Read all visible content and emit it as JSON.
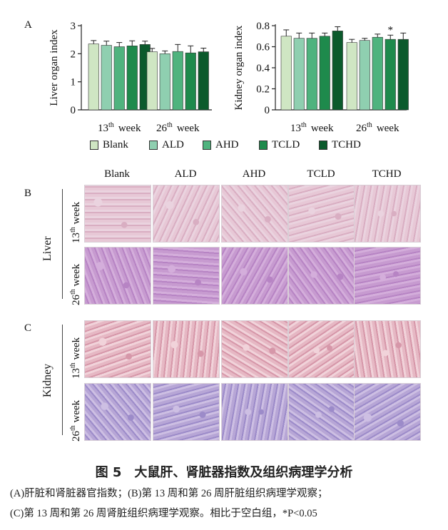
{
  "panel_labels": {
    "a": "A",
    "b": "B",
    "c": "C"
  },
  "legend": {
    "items": [
      {
        "label": "Blank",
        "color": "#cfe6c3"
      },
      {
        "label": "ALD",
        "color": "#8fcfb0"
      },
      {
        "label": "AHD",
        "color": "#4fb37e"
      },
      {
        "label": "TCLD",
        "color": "#1e8a4c"
      },
      {
        "label": "TCHD",
        "color": "#0b5a2c"
      }
    ]
  },
  "chart_data": [
    {
      "type": "bar",
      "ylabel": "Liver organ index",
      "ylim": [
        0,
        3
      ],
      "yticks": [
        "0",
        "1",
        "2",
        "3"
      ],
      "categories": [
        {
          "num": "13",
          "sup": "th",
          "word": "week"
        },
        {
          "num": "26",
          "sup": "th",
          "word": "week"
        }
      ],
      "series": [
        {
          "name": "Blank",
          "values": [
            2.35,
            2.07
          ],
          "errors": [
            0.12,
            0.12
          ]
        },
        {
          "name": "ALD",
          "values": [
            2.3,
            2.0
          ],
          "errors": [
            0.15,
            0.1
          ]
        },
        {
          "name": "AHD",
          "values": [
            2.25,
            2.08
          ],
          "errors": [
            0.15,
            0.25
          ]
        },
        {
          "name": "TCLD",
          "values": [
            2.28,
            2.03
          ],
          "errors": [
            0.18,
            0.25
          ]
        },
        {
          "name": "TCHD",
          "values": [
            2.33,
            2.07
          ],
          "errors": [
            0.12,
            0.13
          ]
        }
      ]
    },
    {
      "type": "bar",
      "ylabel": "Kidney organ index",
      "ylim": [
        0,
        0.8
      ],
      "yticks": [
        "0",
        "0.2",
        "0.4",
        "0.6",
        "0.8"
      ],
      "categories": [
        {
          "num": "13",
          "sup": "th",
          "word": "week"
        },
        {
          "num": "26",
          "sup": "th",
          "word": "week"
        }
      ],
      "annotations": [
        {
          "text": "*",
          "series": "TCLD",
          "category": 1
        }
      ],
      "series": [
        {
          "name": "Blank",
          "values": [
            0.7,
            0.64
          ],
          "errors": [
            0.06,
            0.03
          ]
        },
        {
          "name": "ALD",
          "values": [
            0.68,
            0.66
          ],
          "errors": [
            0.05,
            0.02
          ]
        },
        {
          "name": "AHD",
          "values": [
            0.68,
            0.69
          ],
          "errors": [
            0.05,
            0.03
          ]
        },
        {
          "name": "TCLD",
          "values": [
            0.7,
            0.67
          ],
          "errors": [
            0.03,
            0.04
          ]
        },
        {
          "name": "TCHD",
          "values": [
            0.75,
            0.67
          ],
          "errors": [
            0.04,
            0.06
          ]
        }
      ]
    }
  ],
  "histology": {
    "columns": [
      "Blank",
      "ALD",
      "AHD",
      "TCLD",
      "TCHD"
    ],
    "groups": [
      {
        "organ": "Liver",
        "rows": [
          {
            "num": "13",
            "sup": "th",
            "word": "week"
          },
          {
            "num": "26",
            "sup": "th",
            "word": "week"
          }
        ],
        "palettes": [
          [
            "#e7c8d6",
            "#d9aec2",
            "#ead3df"
          ],
          [
            "#c79bd0",
            "#b784c4",
            "#d4aedb"
          ]
        ]
      },
      {
        "organ": "Kidney",
        "rows": [
          {
            "num": "13",
            "sup": "th",
            "word": "week"
          },
          {
            "num": "26",
            "sup": "th",
            "word": "week"
          }
        ],
        "palettes": [
          [
            "#e6b8c4",
            "#d697a9",
            "#f1d3da"
          ],
          [
            "#b7a6d6",
            "#9c8bc9",
            "#cdbfe3"
          ]
        ]
      }
    ]
  },
  "caption": {
    "title": "图 5　大鼠肝、肾脏器指数及组织病理学分析",
    "line1": "(A)肝脏和肾脏器官指数；(B)第 13 周和第 26 周肝脏组织病理学观察；",
    "line2": "(C)第 13 周和第 26 周肾脏组织病理学观察。相比于空白组，*P<0.05"
  }
}
